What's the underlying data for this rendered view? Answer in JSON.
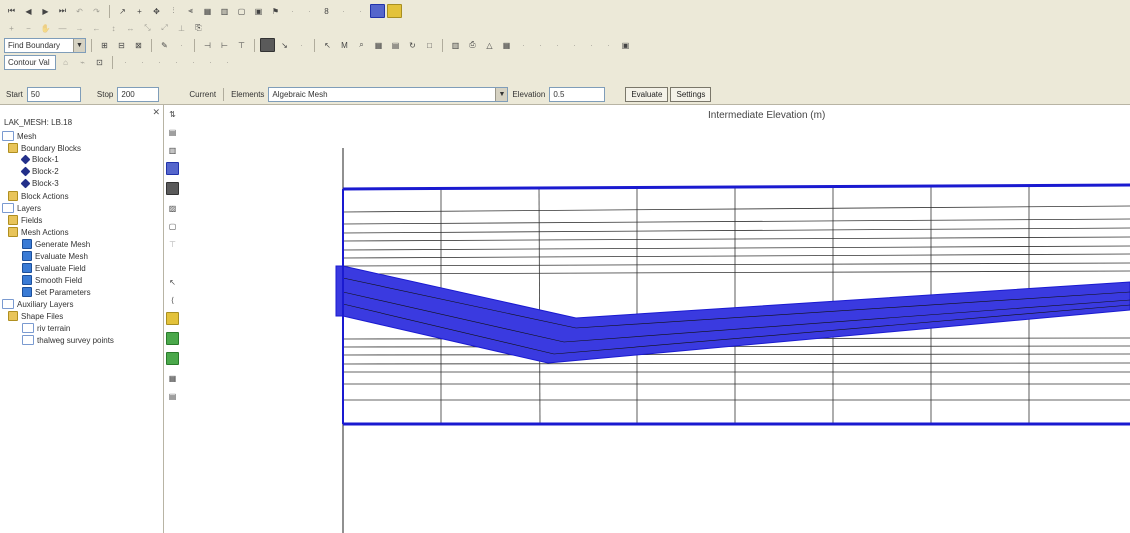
{
  "toolbar": {
    "row3": {
      "combo1": "Find Boundary"
    },
    "row4": {
      "combo2": "Contour Val"
    },
    "row5": {
      "field1_label": "Start",
      "field1_value": "50",
      "field2_label": "Stop",
      "field2_value": "200",
      "label_current": "Current",
      "label_elements": "Elements",
      "elements_combo": "Algebraic Mesh",
      "elevation_label": "Elevation",
      "elevation_value": "0.5",
      "evaluate_button": "Evaluate",
      "settings_button": "Settings"
    }
  },
  "tree": {
    "root": "LAK_MESH: LB.18",
    "mesh": "Mesh",
    "boundary_blocks": "Boundary Blocks",
    "blocks": [
      "Block-1",
      "Block-2",
      "Block-3"
    ],
    "block_actions": "Block Actions",
    "layers": "Layers",
    "fields": "Fields",
    "mesh_actions": "Mesh Actions",
    "actions": [
      "Generate Mesh",
      "Evaluate Mesh",
      "Evaluate Field",
      "Smooth Field",
      "Set Parameters"
    ],
    "auxiliary_layers": "Auxiliary Layers",
    "shape_files": "Shape Files",
    "shapes": [
      "riv terrain",
      "thalweg survey points"
    ]
  },
  "canvas": {
    "title": "Intermediate Elevation (m)"
  },
  "colors": {
    "mesh_outline": "#1a1ad0",
    "band_fill": "#3a3ae0",
    "grid_line": "#222222"
  }
}
